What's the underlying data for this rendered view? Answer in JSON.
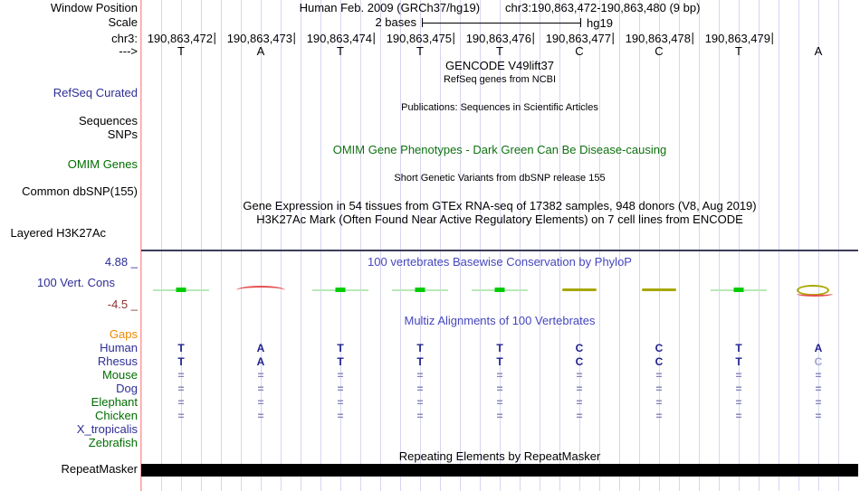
{
  "header": {
    "window_position_label": "Window Position",
    "assembly": "Human Feb. 2009 (GRCh37/hg19)",
    "position": "chr3:190,863,472-190,863,480 (9 bp)",
    "scale_label": "Scale",
    "scale_value": "2 bases",
    "scale_assembly": "hg19",
    "chrom_label": "chr3:",
    "strand_label": "--->"
  },
  "ruler": {
    "position_labels": [
      "190,863,472",
      "190,863,473",
      "190,863,474",
      "190,863,475",
      "190,863,476",
      "190,863,477",
      "190,863,478",
      "190,863,479"
    ],
    "bases": [
      "T",
      "A",
      "T",
      "T",
      "T",
      "C",
      "C",
      "T",
      "A"
    ]
  },
  "tracks": {
    "gencode_title": "GENCODE V49lift37",
    "refseq_subtitle": "RefSeq genes from NCBI",
    "refseq_label": "RefSeq Curated",
    "publications_title": "Publications: Sequences in Scientific Articles",
    "sequences_label": "Sequences",
    "snps_label": "SNPs",
    "omim_title": "OMIM Gene Phenotypes - Dark Green Can Be Disease-causing",
    "omim_label": "OMIM Genes",
    "dbsnp_title": "Short Genetic Variants from dbSNP release 155",
    "dbsnp_label": "Common dbSNP(155)",
    "gtex_title": "Gene Expression in 54 tissues from GTEx RNA-seq of 17382 samples, 948 donors (V8, Aug 2019)",
    "h3k27ac_title": "H3K27Ac Mark (Often Found Near Active Regulatory Elements) on 7 cell lines from ENCODE",
    "h3k27ac_label": "Layered H3K27Ac"
  },
  "conservation": {
    "title": "100 vertebrates Basewise Conservation by PhyloP",
    "label": "100 Vert. Cons",
    "max_label": "4.88 _",
    "min_label": "-4.5 _",
    "marks": [
      "green_box",
      "red_arc",
      "green_box",
      "green_box",
      "green_box",
      "olive_line",
      "olive_line",
      "green_box",
      "olive_ellipse_red"
    ]
  },
  "multiz": {
    "title": "Multiz Alignments of 100 Vertebrates",
    "rows": [
      {
        "label": "Gaps",
        "color": "orange",
        "cells": [
          "",
          "",
          "",
          "",
          "",
          "",
          "",
          "",
          ""
        ],
        "faded_cells": []
      },
      {
        "label": "Human",
        "color": "navy",
        "cells": [
          "T",
          "A",
          "T",
          "T",
          "T",
          "C",
          "C",
          "T",
          "A"
        ],
        "faded_cells": []
      },
      {
        "label": "Rhesus",
        "color": "navy",
        "cells": [
          "T",
          "A",
          "T",
          "T",
          "T",
          "C",
          "C",
          "T",
          "C"
        ],
        "faded_cells": [
          8
        ]
      },
      {
        "label": "Mouse",
        "color": "green",
        "cells": [
          "=",
          "=",
          "=",
          "=",
          "=",
          "=",
          "=",
          "=",
          "="
        ],
        "faded_cells": []
      },
      {
        "label": "Dog",
        "color": "navy",
        "cells": [
          "=",
          "=",
          "=",
          "=",
          "=",
          "=",
          "=",
          "=",
          "="
        ],
        "faded_cells": []
      },
      {
        "label": "Elephant",
        "color": "green",
        "cells": [
          "=",
          "=",
          "=",
          "=",
          "=",
          "=",
          "=",
          "=",
          "="
        ],
        "faded_cells": []
      },
      {
        "label": "Chicken",
        "color": "green",
        "cells": [
          "=",
          "=",
          "=",
          "=",
          "=",
          "=",
          "=",
          "=",
          "="
        ],
        "faded_cells": []
      },
      {
        "label": "X_tropicalis",
        "color": "navy",
        "cells": [
          "",
          "",
          "",
          "",
          "",
          "",
          "",
          "",
          ""
        ],
        "faded_cells": []
      },
      {
        "label": "Zebrafish",
        "color": "green",
        "cells": [
          "",
          "",
          "",
          "",
          "",
          "",
          "",
          "",
          ""
        ],
        "faded_cells": []
      }
    ]
  },
  "repeatmasker": {
    "title": "Repeating Elements by RepeatMasker",
    "label": "RepeatMasker"
  },
  "colors": {
    "label_navy": "#2d2d96",
    "label_green": "#006e00",
    "label_orange": "#ee8800",
    "title_blue": "#4646be",
    "title_dark_green": "#0f700f",
    "range_maroon": "#8c3232",
    "align_letter": "#1f1f8f",
    "align_equals": "#8585bb",
    "align_faded": "#a3a3cc",
    "cons_bright_green": "#00cc00",
    "cons_light_green": "#b9e8b9",
    "cons_olive": "#a8a800",
    "cons_red": "#e65050",
    "grid_line": "#d6d6f2",
    "guide_pink": "#ff9e9e",
    "divider_dark": "#3c3c5a",
    "repeat_black": "#000000"
  }
}
